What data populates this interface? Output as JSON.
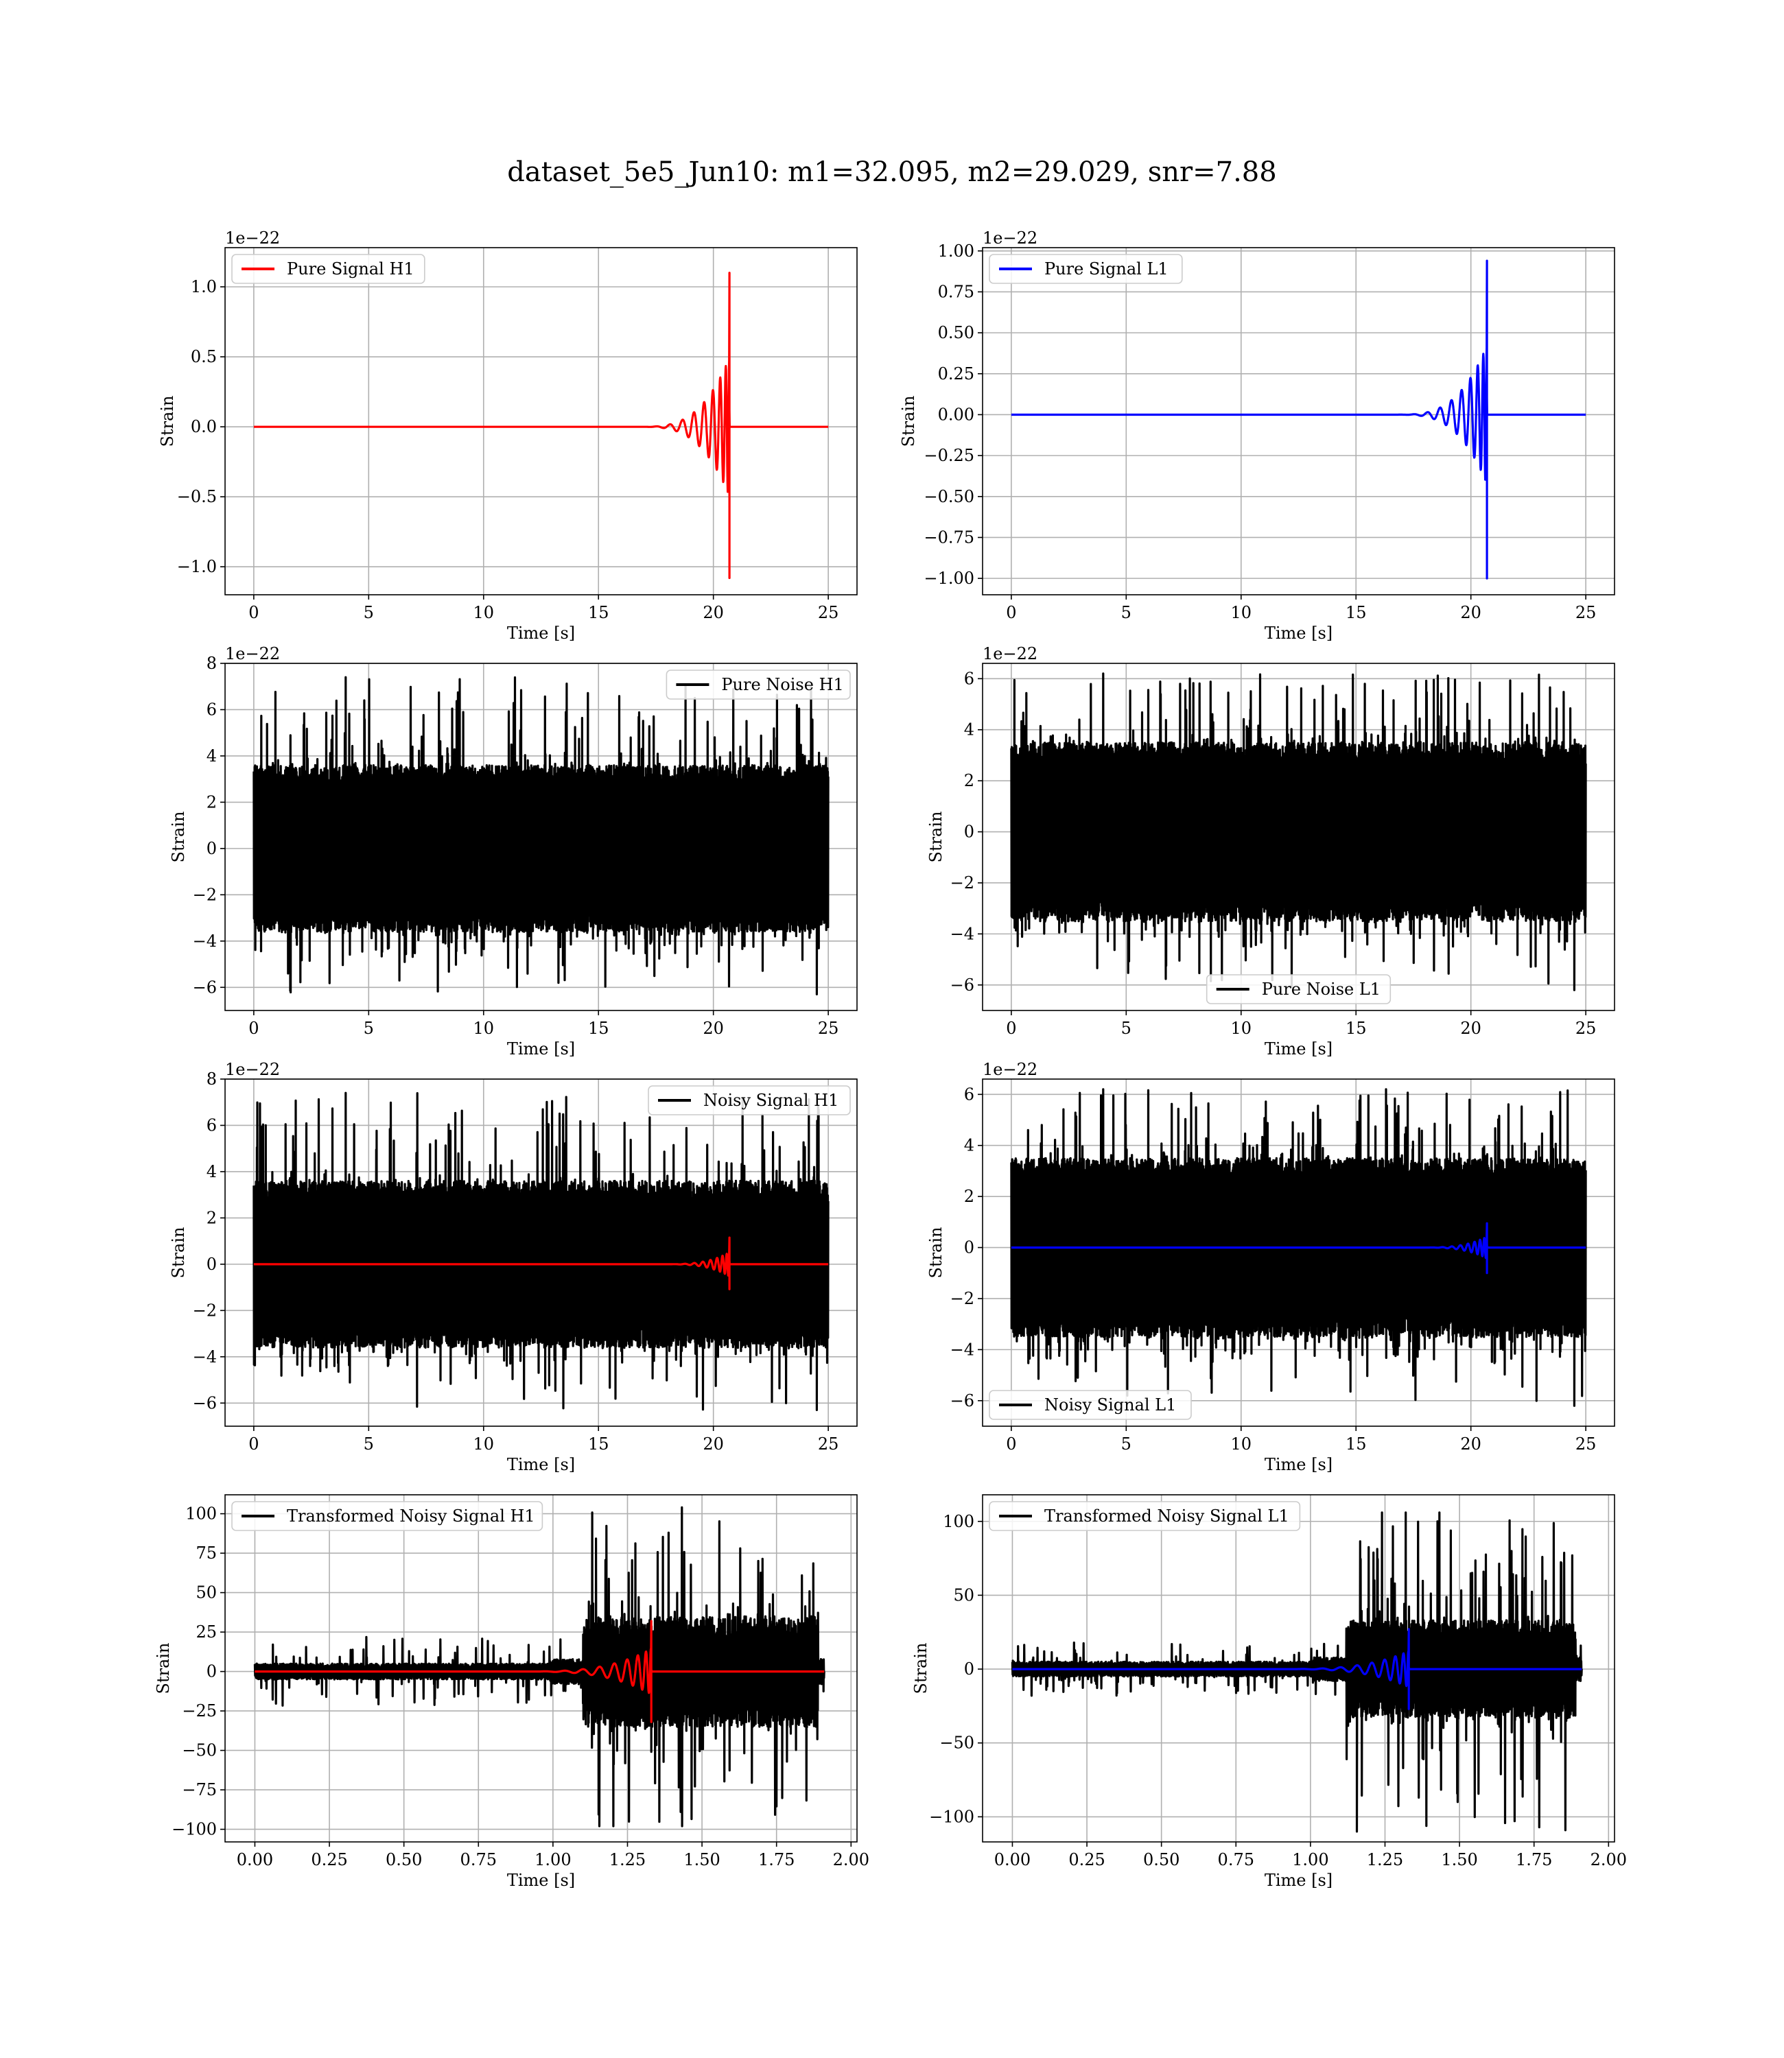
{
  "figure": {
    "title": "dataset_5e5_Jun10: m1=32.095, m2=29.029, snr=7.88"
  },
  "chart_data": [
    {
      "type": "line",
      "legend": "Pure Signal H1",
      "legend_loc": "upper-left",
      "color": "#ff0000",
      "offset_text": "1e−22",
      "xlabel": "Time [s]",
      "ylabel": "Strain",
      "xlim": [
        -1.25,
        26.25
      ],
      "ylim": [
        -1.2,
        1.28
      ],
      "xticks": [
        0,
        5,
        10,
        15,
        20,
        25
      ],
      "yticks": [
        -1.0,
        -0.5,
        0.0,
        0.5,
        1.0
      ],
      "ytick_labels": [
        "−1.0",
        "−0.5",
        "0.0",
        "0.5",
        "1.0"
      ],
      "series": [
        {
          "kind": "chirp",
          "color": "#ff0000",
          "x_start": 0,
          "x_end": 25,
          "merger": 20.7,
          "amp_merger": 1.1,
          "amp_min": 1.08,
          "duration": 4.0
        }
      ]
    },
    {
      "type": "line",
      "legend": "Pure Signal L1",
      "legend_loc": "upper-left",
      "color": "#0000ff",
      "offset_text": "1e−22",
      "xlabel": "Time [s]",
      "ylabel": "Strain",
      "xlim": [
        -1.25,
        26.25
      ],
      "ylim": [
        -1.1,
        1.02
      ],
      "xticks": [
        0,
        5,
        10,
        15,
        20,
        25
      ],
      "yticks": [
        -1.0,
        -0.75,
        -0.5,
        -0.25,
        0.0,
        0.25,
        0.5,
        0.75,
        1.0
      ],
      "ytick_labels": [
        "−1.00",
        "−0.75",
        "−0.50",
        "−0.25",
        "0.00",
        "0.25",
        "0.50",
        "0.75",
        "1.00"
      ],
      "series": [
        {
          "kind": "chirp",
          "color": "#0000ff",
          "x_start": 0,
          "x_end": 25,
          "merger": 20.7,
          "amp_merger": 0.94,
          "amp_min": 1.0,
          "duration": 4.0
        }
      ]
    },
    {
      "type": "line",
      "legend": "Pure Noise H1",
      "legend_loc": "upper-right",
      "color": "#000000",
      "offset_text": "1e−22",
      "xlabel": "Time [s]",
      "ylabel": "Strain",
      "xlim": [
        -1.25,
        26.25
      ],
      "ylim": [
        -7.0,
        8.0
      ],
      "xticks": [
        0,
        5,
        10,
        15,
        20,
        25
      ],
      "yticks": [
        -6,
        -4,
        -2,
        0,
        2,
        4,
        6,
        8
      ],
      "ytick_labels": [
        "−6",
        "−4",
        "−2",
        "0",
        "2",
        "4",
        "6",
        "8"
      ],
      "series": [
        {
          "kind": "noise",
          "color": "#000000",
          "x_start": 0,
          "x_end": 25,
          "base": 3.6,
          "peak_max": 7.4,
          "peak_min": -6.3
        }
      ]
    },
    {
      "type": "line",
      "legend": "Pure Noise L1",
      "legend_loc": "lower-center",
      "color": "#000000",
      "offset_text": "1e−22",
      "xlabel": "Time [s]",
      "ylabel": "Strain",
      "xlim": [
        -1.25,
        26.25
      ],
      "ylim": [
        -7.0,
        6.6
      ],
      "xticks": [
        0,
        5,
        10,
        15,
        20,
        25
      ],
      "yticks": [
        -6,
        -4,
        -2,
        0,
        2,
        4,
        6
      ],
      "ytick_labels": [
        "−6",
        "−4",
        "−2",
        "0",
        "2",
        "4",
        "6"
      ],
      "series": [
        {
          "kind": "noise",
          "color": "#000000",
          "x_start": 0,
          "x_end": 25,
          "base": 3.5,
          "peak_max": 6.2,
          "peak_min": -6.2
        }
      ]
    },
    {
      "type": "line",
      "legend": "Noisy Signal H1",
      "legend_loc": "upper-right",
      "color": "#000000",
      "offset_text": "1e−22",
      "xlabel": "Time [s]",
      "ylabel": "Strain",
      "xlim": [
        -1.25,
        26.25
      ],
      "ylim": [
        -7.0,
        8.0
      ],
      "xticks": [
        0,
        5,
        10,
        15,
        20,
        25
      ],
      "yticks": [
        -6,
        -4,
        -2,
        0,
        2,
        4,
        6,
        8
      ],
      "ytick_labels": [
        "−6",
        "−4",
        "−2",
        "0",
        "2",
        "4",
        "6",
        "8"
      ],
      "series": [
        {
          "kind": "noise",
          "color": "#000000",
          "x_start": 0,
          "x_end": 25,
          "base": 3.6,
          "peak_max": 7.4,
          "peak_min": -6.3
        },
        {
          "kind": "chirp",
          "color": "#ff0000",
          "x_start": 0,
          "x_end": 25,
          "merger": 20.7,
          "amp_merger": 1.15,
          "amp_min": 1.08,
          "duration": 3.0
        }
      ]
    },
    {
      "type": "line",
      "legend": "Noisy Signal L1",
      "legend_loc": "lower-left",
      "color": "#000000",
      "offset_text": "1e−22",
      "xlabel": "Time [s]",
      "ylabel": "Strain",
      "xlim": [
        -1.25,
        26.25
      ],
      "ylim": [
        -7.0,
        6.6
      ],
      "xticks": [
        0,
        5,
        10,
        15,
        20,
        25
      ],
      "yticks": [
        -6,
        -4,
        -2,
        0,
        2,
        4,
        6
      ],
      "ytick_labels": [
        "−6",
        "−4",
        "−2",
        "0",
        "2",
        "4",
        "6"
      ],
      "series": [
        {
          "kind": "noise",
          "color": "#000000",
          "x_start": 0,
          "x_end": 25,
          "base": 3.5,
          "peak_max": 6.2,
          "peak_min": -6.2
        },
        {
          "kind": "chirp",
          "color": "#0000ff",
          "x_start": 0,
          "x_end": 25,
          "merger": 20.7,
          "amp_merger": 0.95,
          "amp_min": 1.0,
          "duration": 3.0
        }
      ]
    },
    {
      "type": "line",
      "legend": "Transformed Noisy Signal H1",
      "legend_loc": "upper-left",
      "color": "#000000",
      "offset_text": "",
      "xlabel": "Time [s]",
      "ylabel": "Strain",
      "xlim": [
        -0.1,
        2.02
      ],
      "ylim": [
        -108,
        112
      ],
      "xticks": [
        0.0,
        0.25,
        0.5,
        0.75,
        1.0,
        1.25,
        1.5,
        1.75,
        2.0
      ],
      "xtick_labels": [
        "0.00",
        "0.25",
        "0.50",
        "0.75",
        "1.00",
        "1.25",
        "1.50",
        "1.75",
        "2.00"
      ],
      "yticks": [
        -100,
        -75,
        -50,
        -25,
        0,
        25,
        50,
        75,
        100
      ],
      "ytick_labels": [
        "−100",
        "−75",
        "−50",
        "−25",
        "0",
        "25",
        "50",
        "75",
        "100"
      ],
      "series": [
        {
          "kind": "transformed",
          "color": "#000000",
          "x_start": 0,
          "x_end": 1.91,
          "jump": 1.1,
          "low_base": 5,
          "low_peak": 22,
          "high_base": 35,
          "peak_max": 104,
          "peak_min": -98
        },
        {
          "kind": "chirp",
          "color": "#ff0000",
          "x_start": 0,
          "x_end": 1.91,
          "merger": 1.33,
          "amp_merger": 32,
          "amp_min": 32,
          "duration": 0.45
        }
      ]
    },
    {
      "type": "line",
      "legend": "Transformed Noisy Signal L1",
      "legend_loc": "upper-left",
      "color": "#000000",
      "offset_text": "",
      "xlabel": "Time [s]",
      "ylabel": "Strain",
      "xlim": [
        -0.1,
        2.02
      ],
      "ylim": [
        -117,
        118
      ],
      "xticks": [
        0.0,
        0.25,
        0.5,
        0.75,
        1.0,
        1.25,
        1.5,
        1.75,
        2.0
      ],
      "xtick_labels": [
        "0.00",
        "0.25",
        "0.50",
        "0.75",
        "1.00",
        "1.25",
        "1.50",
        "1.75",
        "2.00"
      ],
      "yticks": [
        -100,
        -50,
        0,
        50,
        100
      ],
      "ytick_labels": [
        "−100",
        "−50",
        "0",
        "50",
        "100"
      ],
      "series": [
        {
          "kind": "transformed",
          "color": "#000000",
          "x_start": 0,
          "x_end": 1.91,
          "jump": 1.12,
          "low_base": 5,
          "low_peak": 18,
          "high_base": 33,
          "peak_max": 106,
          "peak_min": -110
        },
        {
          "kind": "chirp",
          "color": "#0000ff",
          "x_start": 0,
          "x_end": 1.91,
          "merger": 1.33,
          "amp_merger": 27,
          "amp_min": 27,
          "duration": 0.45
        }
      ]
    }
  ]
}
